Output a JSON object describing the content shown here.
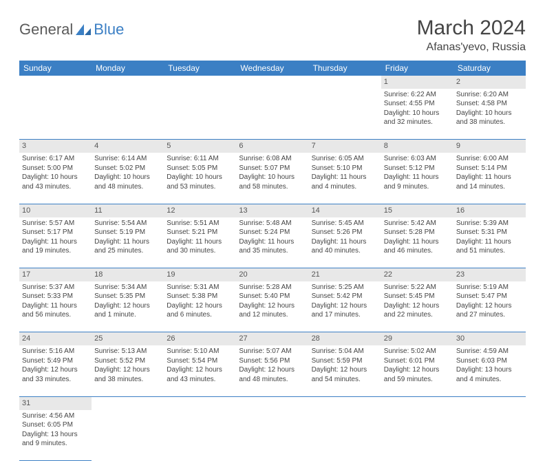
{
  "logo": {
    "text1": "General",
    "text2": "Blue"
  },
  "title": "March 2024",
  "location": "Afanas'yevo, Russia",
  "colors": {
    "header_bg": "#3b7fc4",
    "header_text": "#ffffff",
    "daynum_bg": "#e8e8e8",
    "row_border": "#3b7fc4",
    "text": "#444444",
    "background": "#ffffff"
  },
  "days": [
    "Sunday",
    "Monday",
    "Tuesday",
    "Wednesday",
    "Thursday",
    "Friday",
    "Saturday"
  ],
  "weeks": [
    [
      null,
      null,
      null,
      null,
      null,
      {
        "n": "1",
        "sr": "Sunrise: 6:22 AM",
        "ss": "Sunset: 4:55 PM",
        "d1": "Daylight: 10 hours",
        "d2": "and 32 minutes."
      },
      {
        "n": "2",
        "sr": "Sunrise: 6:20 AM",
        "ss": "Sunset: 4:58 PM",
        "d1": "Daylight: 10 hours",
        "d2": "and 38 minutes."
      }
    ],
    [
      {
        "n": "3",
        "sr": "Sunrise: 6:17 AM",
        "ss": "Sunset: 5:00 PM",
        "d1": "Daylight: 10 hours",
        "d2": "and 43 minutes."
      },
      {
        "n": "4",
        "sr": "Sunrise: 6:14 AM",
        "ss": "Sunset: 5:02 PM",
        "d1": "Daylight: 10 hours",
        "d2": "and 48 minutes."
      },
      {
        "n": "5",
        "sr": "Sunrise: 6:11 AM",
        "ss": "Sunset: 5:05 PM",
        "d1": "Daylight: 10 hours",
        "d2": "and 53 minutes."
      },
      {
        "n": "6",
        "sr": "Sunrise: 6:08 AM",
        "ss": "Sunset: 5:07 PM",
        "d1": "Daylight: 10 hours",
        "d2": "and 58 minutes."
      },
      {
        "n": "7",
        "sr": "Sunrise: 6:05 AM",
        "ss": "Sunset: 5:10 PM",
        "d1": "Daylight: 11 hours",
        "d2": "and 4 minutes."
      },
      {
        "n": "8",
        "sr": "Sunrise: 6:03 AM",
        "ss": "Sunset: 5:12 PM",
        "d1": "Daylight: 11 hours",
        "d2": "and 9 minutes."
      },
      {
        "n": "9",
        "sr": "Sunrise: 6:00 AM",
        "ss": "Sunset: 5:14 PM",
        "d1": "Daylight: 11 hours",
        "d2": "and 14 minutes."
      }
    ],
    [
      {
        "n": "10",
        "sr": "Sunrise: 5:57 AM",
        "ss": "Sunset: 5:17 PM",
        "d1": "Daylight: 11 hours",
        "d2": "and 19 minutes."
      },
      {
        "n": "11",
        "sr": "Sunrise: 5:54 AM",
        "ss": "Sunset: 5:19 PM",
        "d1": "Daylight: 11 hours",
        "d2": "and 25 minutes."
      },
      {
        "n": "12",
        "sr": "Sunrise: 5:51 AM",
        "ss": "Sunset: 5:21 PM",
        "d1": "Daylight: 11 hours",
        "d2": "and 30 minutes."
      },
      {
        "n": "13",
        "sr": "Sunrise: 5:48 AM",
        "ss": "Sunset: 5:24 PM",
        "d1": "Daylight: 11 hours",
        "d2": "and 35 minutes."
      },
      {
        "n": "14",
        "sr": "Sunrise: 5:45 AM",
        "ss": "Sunset: 5:26 PM",
        "d1": "Daylight: 11 hours",
        "d2": "and 40 minutes."
      },
      {
        "n": "15",
        "sr": "Sunrise: 5:42 AM",
        "ss": "Sunset: 5:28 PM",
        "d1": "Daylight: 11 hours",
        "d2": "and 46 minutes."
      },
      {
        "n": "16",
        "sr": "Sunrise: 5:39 AM",
        "ss": "Sunset: 5:31 PM",
        "d1": "Daylight: 11 hours",
        "d2": "and 51 minutes."
      }
    ],
    [
      {
        "n": "17",
        "sr": "Sunrise: 5:37 AM",
        "ss": "Sunset: 5:33 PM",
        "d1": "Daylight: 11 hours",
        "d2": "and 56 minutes."
      },
      {
        "n": "18",
        "sr": "Sunrise: 5:34 AM",
        "ss": "Sunset: 5:35 PM",
        "d1": "Daylight: 12 hours",
        "d2": "and 1 minute."
      },
      {
        "n": "19",
        "sr": "Sunrise: 5:31 AM",
        "ss": "Sunset: 5:38 PM",
        "d1": "Daylight: 12 hours",
        "d2": "and 6 minutes."
      },
      {
        "n": "20",
        "sr": "Sunrise: 5:28 AM",
        "ss": "Sunset: 5:40 PM",
        "d1": "Daylight: 12 hours",
        "d2": "and 12 minutes."
      },
      {
        "n": "21",
        "sr": "Sunrise: 5:25 AM",
        "ss": "Sunset: 5:42 PM",
        "d1": "Daylight: 12 hours",
        "d2": "and 17 minutes."
      },
      {
        "n": "22",
        "sr": "Sunrise: 5:22 AM",
        "ss": "Sunset: 5:45 PM",
        "d1": "Daylight: 12 hours",
        "d2": "and 22 minutes."
      },
      {
        "n": "23",
        "sr": "Sunrise: 5:19 AM",
        "ss": "Sunset: 5:47 PM",
        "d1": "Daylight: 12 hours",
        "d2": "and 27 minutes."
      }
    ],
    [
      {
        "n": "24",
        "sr": "Sunrise: 5:16 AM",
        "ss": "Sunset: 5:49 PM",
        "d1": "Daylight: 12 hours",
        "d2": "and 33 minutes."
      },
      {
        "n": "25",
        "sr": "Sunrise: 5:13 AM",
        "ss": "Sunset: 5:52 PM",
        "d1": "Daylight: 12 hours",
        "d2": "and 38 minutes."
      },
      {
        "n": "26",
        "sr": "Sunrise: 5:10 AM",
        "ss": "Sunset: 5:54 PM",
        "d1": "Daylight: 12 hours",
        "d2": "and 43 minutes."
      },
      {
        "n": "27",
        "sr": "Sunrise: 5:07 AM",
        "ss": "Sunset: 5:56 PM",
        "d1": "Daylight: 12 hours",
        "d2": "and 48 minutes."
      },
      {
        "n": "28",
        "sr": "Sunrise: 5:04 AM",
        "ss": "Sunset: 5:59 PM",
        "d1": "Daylight: 12 hours",
        "d2": "and 54 minutes."
      },
      {
        "n": "29",
        "sr": "Sunrise: 5:02 AM",
        "ss": "Sunset: 6:01 PM",
        "d1": "Daylight: 12 hours",
        "d2": "and 59 minutes."
      },
      {
        "n": "30",
        "sr": "Sunrise: 4:59 AM",
        "ss": "Sunset: 6:03 PM",
        "d1": "Daylight: 13 hours",
        "d2": "and 4 minutes."
      }
    ],
    [
      {
        "n": "31",
        "sr": "Sunrise: 4:56 AM",
        "ss": "Sunset: 6:05 PM",
        "d1": "Daylight: 13 hours",
        "d2": "and 9 minutes."
      },
      null,
      null,
      null,
      null,
      null,
      null
    ]
  ]
}
